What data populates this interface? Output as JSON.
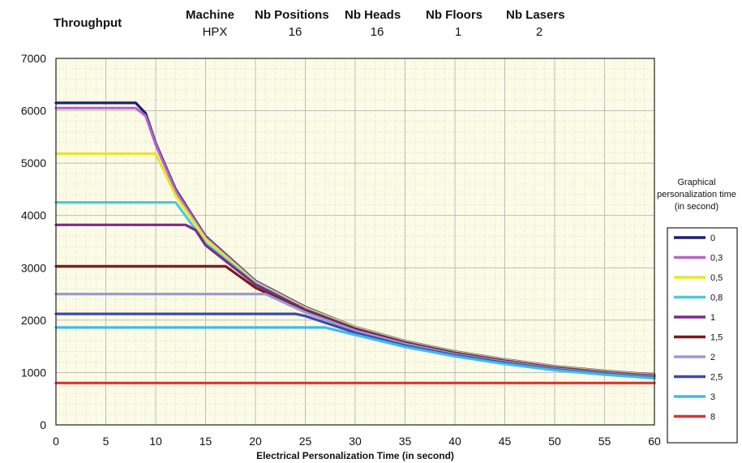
{
  "header": {
    "title": "Throughput",
    "columns": [
      {
        "label": "Machine",
        "value": "HPX"
      },
      {
        "label": "Nb Positions",
        "value": "16"
      },
      {
        "label": "Nb Heads",
        "value": "16"
      },
      {
        "label": "Nb Floors",
        "value": "1"
      },
      {
        "label": "Nb Lasers",
        "value": "2"
      }
    ]
  },
  "chart_data": {
    "type": "line",
    "xlabel": "Electrical  Personalization  Time (in second)",
    "ylabel": "",
    "xlim": [
      0,
      60
    ],
    "ylim": [
      0,
      7000
    ],
    "xticks": [
      "0",
      "5",
      "10",
      "15",
      "20",
      "25",
      "30",
      "35",
      "40",
      "45",
      "50",
      "55",
      "60"
    ],
    "yticks": [
      "0",
      "1000",
      "2000",
      "3000",
      "4000",
      "5000",
      "6000",
      "7000"
    ],
    "grid": true,
    "legend_title": "Graphical personalization time  (in second)",
    "legend_position": "right",
    "series": [
      {
        "name": "0",
        "color": "#1f1f6e",
        "x": [
          0,
          8,
          9,
          10,
          12,
          15,
          20,
          25,
          30,
          35,
          40,
          45,
          50,
          55,
          60
        ],
        "y": [
          6150,
          6150,
          5950,
          5380,
          4500,
          3600,
          2750,
          2250,
          1870,
          1600,
          1400,
          1250,
          1120,
          1030,
          960
        ]
      },
      {
        "name": "0,3",
        "color": "#b865c8",
        "x": [
          0,
          8,
          9,
          10,
          12,
          15,
          20,
          25,
          30,
          35,
          40,
          45,
          50,
          55,
          60
        ],
        "y": [
          6050,
          6050,
          5900,
          5350,
          4470,
          3580,
          2740,
          2240,
          1865,
          1595,
          1395,
          1245,
          1115,
          1025,
          955
        ]
      },
      {
        "name": "0,5",
        "color": "#e6e62e",
        "x": [
          0,
          10,
          12,
          15,
          20,
          25,
          30,
          35,
          40,
          45,
          50,
          55,
          60
        ],
        "y": [
          5180,
          5180,
          4380,
          3550,
          2720,
          2230,
          1860,
          1590,
          1390,
          1240,
          1110,
          1020,
          950
        ]
      },
      {
        "name": "0,8",
        "color": "#4fc8d8",
        "x": [
          0,
          12,
          15,
          20,
          25,
          30,
          35,
          40,
          45,
          50,
          55,
          60
        ],
        "y": [
          4250,
          4250,
          3470,
          2700,
          2210,
          1845,
          1580,
          1380,
          1230,
          1100,
          1010,
          940
        ]
      },
      {
        "name": "1",
        "color": "#7d2a8a",
        "x": [
          0,
          13,
          14,
          15,
          20,
          25,
          30,
          35,
          40,
          45,
          50,
          55,
          60
        ],
        "y": [
          3820,
          3820,
          3720,
          3430,
          2680,
          2200,
          1840,
          1575,
          1375,
          1225,
          1095,
          1005,
          935
        ]
      },
      {
        "name": "1,5",
        "color": "#7a1a1a",
        "x": [
          0,
          17,
          20,
          25,
          30,
          35,
          40,
          45,
          50,
          55,
          60
        ],
        "y": [
          3030,
          3030,
          2620,
          2170,
          1820,
          1560,
          1365,
          1215,
          1085,
          1000,
          930
        ]
      },
      {
        "name": "2",
        "color": "#9a9ad8",
        "x": [
          0,
          21,
          25,
          30,
          35,
          40,
          45,
          50,
          55,
          60
        ],
        "y": [
          2500,
          2500,
          2150,
          1800,
          1545,
          1350,
          1205,
          1075,
          990,
          920
        ]
      },
      {
        "name": "2,5",
        "color": "#3a4aaa",
        "x": [
          0,
          24,
          25,
          30,
          35,
          40,
          45,
          50,
          55,
          60
        ],
        "y": [
          2120,
          2120,
          2080,
          1760,
          1515,
          1330,
          1185,
          1060,
          975,
          905
        ]
      },
      {
        "name": "3",
        "color": "#3fbbe6",
        "x": [
          0,
          27,
          30,
          35,
          40,
          45,
          50,
          55,
          60
        ],
        "y": [
          1860,
          1860,
          1720,
          1490,
          1310,
          1165,
          1045,
          960,
          890
        ]
      },
      {
        "name": "8",
        "color": "#dd3333",
        "x": [
          0,
          60
        ],
        "y": [
          800,
          800
        ]
      }
    ]
  }
}
